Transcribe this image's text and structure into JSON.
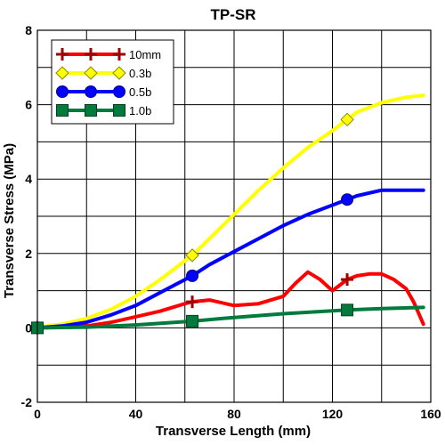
{
  "chart_data": {
    "type": "line",
    "title": "TP-SR",
    "xlabel": "Transverse Length (mm)",
    "ylabel": "Transverse Stress (MPa)",
    "xlim": [
      0,
      160
    ],
    "ylim": [
      -2,
      8
    ],
    "xticks": [
      0,
      40,
      80,
      120,
      160
    ],
    "yticks": [
      -2,
      0,
      2,
      4,
      6,
      8
    ],
    "xtick_labels": [
      "0",
      "40",
      "80",
      "120",
      "160"
    ],
    "ytick_labels": [
      "-2",
      "0",
      "2",
      "4",
      "6",
      "8"
    ],
    "grid": true,
    "legend_position": "top-left",
    "series": [
      {
        "name": "10mm",
        "color": "#ff0000",
        "marker": "plus",
        "marker_x": [
          0,
          63,
          126
        ],
        "x": [
          0,
          10,
          20,
          30,
          40,
          50,
          60,
          63,
          70,
          80,
          90,
          100,
          105,
          110,
          115,
          120,
          126,
          130,
          135,
          140,
          145,
          150,
          153,
          157
        ],
        "y": [
          0,
          0.02,
          0.05,
          0.15,
          0.3,
          0.45,
          0.65,
          0.7,
          0.75,
          0.6,
          0.65,
          0.85,
          1.2,
          1.5,
          1.3,
          1.0,
          1.3,
          1.4,
          1.45,
          1.45,
          1.3,
          1.05,
          0.7,
          0.1
        ]
      },
      {
        "name": "0.3b",
        "color": "#ffff00",
        "marker": "diamond",
        "marker_x": [
          0,
          63,
          126
        ],
        "x": [
          0,
          10,
          20,
          30,
          40,
          50,
          63,
          70,
          80,
          90,
          100,
          110,
          120,
          126,
          130,
          140,
          150,
          157
        ],
        "y": [
          0.02,
          0.1,
          0.25,
          0.5,
          0.85,
          1.3,
          1.95,
          2.4,
          3.05,
          3.7,
          4.3,
          4.85,
          5.3,
          5.6,
          5.8,
          6.05,
          6.2,
          6.25
        ]
      },
      {
        "name": "0.5b",
        "color": "#0000ff",
        "marker": "circle",
        "marker_x": [
          0,
          63,
          126
        ],
        "x": [
          0,
          10,
          20,
          30,
          40,
          50,
          63,
          70,
          80,
          90,
          100,
          110,
          120,
          126,
          130,
          140,
          150,
          157
        ],
        "y": [
          0,
          0.05,
          0.15,
          0.35,
          0.6,
          0.95,
          1.4,
          1.7,
          2.05,
          2.4,
          2.75,
          3.05,
          3.3,
          3.45,
          3.55,
          3.7,
          3.7,
          3.7
        ]
      },
      {
        "name": "1.0b",
        "color": "#007a3d",
        "marker": "square",
        "marker_x": [
          0,
          63,
          126
        ],
        "x": [
          0,
          20,
          40,
          63,
          80,
          100,
          126,
          140,
          157
        ],
        "y": [
          0,
          0.02,
          0.08,
          0.18,
          0.28,
          0.38,
          0.48,
          0.52,
          0.55
        ]
      }
    ]
  }
}
